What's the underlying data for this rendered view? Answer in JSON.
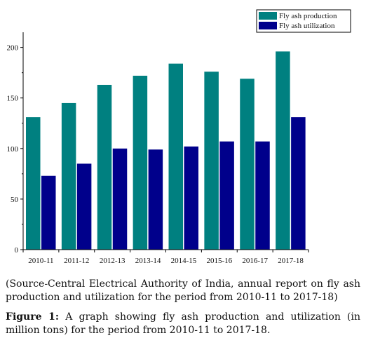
{
  "chart_data": {
    "type": "bar",
    "categories": [
      "2010-11",
      "2011-12",
      "2012-13",
      "2013-14",
      "2014-15",
      "2015-16",
      "2016-17",
      "2017-18"
    ],
    "series": [
      {
        "name": "Fly ash production",
        "values": [
          131,
          145,
          163,
          172,
          184,
          176,
          169,
          196
        ],
        "color": "#008080"
      },
      {
        "name": "Fly ash utilization",
        "values": [
          73,
          85,
          100,
          99,
          102,
          107,
          107,
          131
        ],
        "color": "#00008b"
      }
    ],
    "yticks": [
      0,
      50,
      100,
      150,
      200
    ],
    "ylim": [
      0,
      215
    ],
    "legend_position": "top-right",
    "grid": false
  },
  "source_note": "(Source-Central Electrical Authority of India, annual report on fly ash production and utilization for the period from 2010-11 to 2017-18)",
  "caption": {
    "label": "Figure 1:",
    "text": "A graph showing fly ash production and utilization (in million tons) for the period from 2010-11 to 2017-18."
  }
}
